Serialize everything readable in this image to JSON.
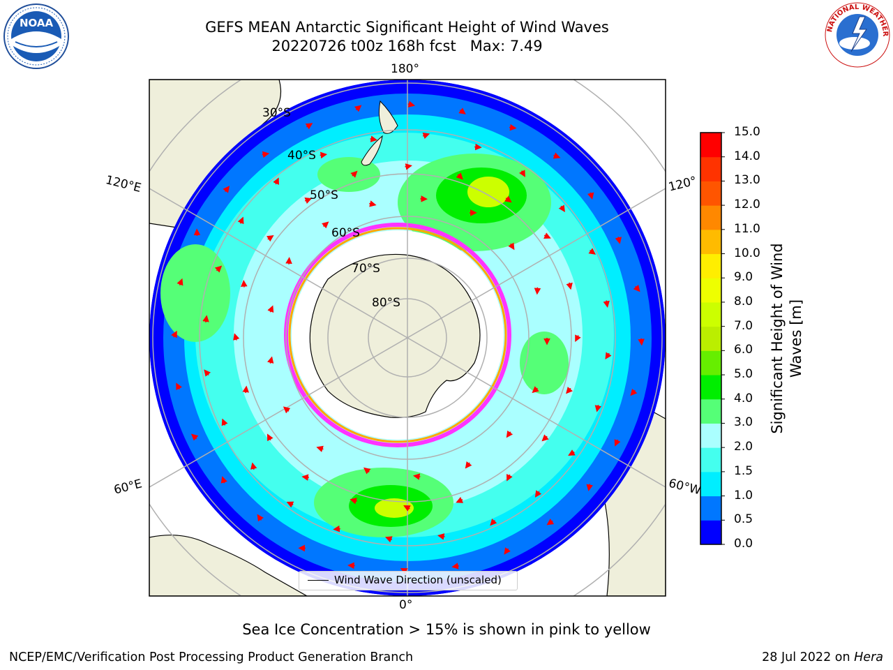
{
  "title": {
    "line1": "GEFS MEAN Antarctic Significant Height of Wind Waves",
    "line2_a": "20220726 t00z 168h fcst",
    "line2_b": "Max: 7.49"
  },
  "logos": {
    "noaa_text": "NOAA",
    "nws_text": "NATIONAL WEATHER SERVICE"
  },
  "map": {
    "projection": "south-polar-stereographic",
    "longitude_labels": {
      "top": "180°",
      "upper_left": "120°E",
      "upper_right": "120°",
      "lower_left": "60°E",
      "lower_right": "60°W",
      "bottom": "0°"
    },
    "latitude_labels": [
      "30°S",
      "40°S",
      "50°S",
      "60°S",
      "70°S",
      "80°S"
    ],
    "legend_label": "Wind Wave Direction (unscaled)",
    "arrow_color": "#ff0000",
    "land_color": "#efefdb",
    "ice_colors": [
      "#ff33ff",
      "#ffa500",
      "#ffff33"
    ]
  },
  "colorbar": {
    "title_line1": "Significant Height of Wind",
    "title_line2": "Waves [m]",
    "ticks": [
      "0.0",
      "0.5",
      "1.0",
      "1.5",
      "2.0",
      "3.0",
      "4.0",
      "5.0",
      "6.0",
      "7.0",
      "8.0",
      "9.0",
      "10.0",
      "11.0",
      "12.0",
      "13.0",
      "14.0",
      "15.0"
    ],
    "colors": [
      "#0000ff",
      "#0077ff",
      "#00eeff",
      "#44ffee",
      "#aaffff",
      "#55ff77",
      "#00ee00",
      "#66ee00",
      "#bbee00",
      "#ccff00",
      "#eeff00",
      "#ffee00",
      "#ffbb00",
      "#ff8800",
      "#ff5500",
      "#ff3300",
      "#ff0000"
    ]
  },
  "caption": "Sea Ice Concentration > 15% is shown in pink to yellow",
  "footer": {
    "left": "NCEP/EMC/Verification Post Processing Product Generation Branch",
    "right_date": "28 Jul 2022 on",
    "right_machine": "Hera"
  }
}
